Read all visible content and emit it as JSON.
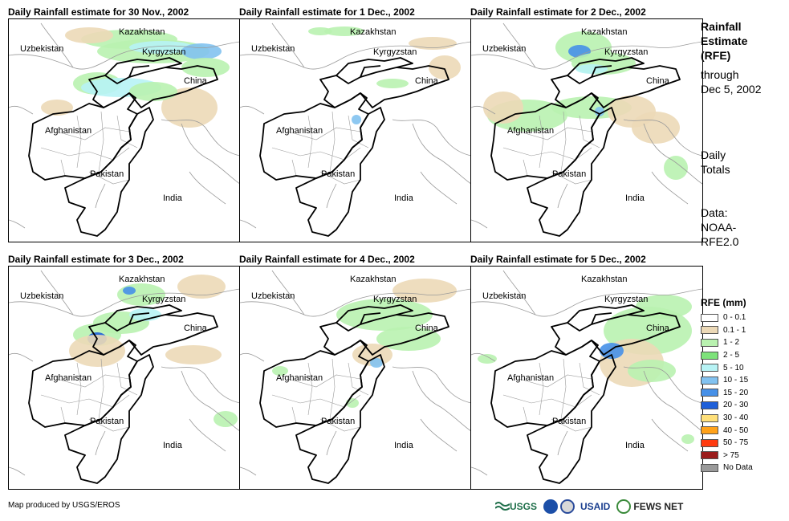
{
  "panels": [
    {
      "title": "Daily Rainfall estimate for 30 Nov., 2002"
    },
    {
      "title": "Daily Rainfall estimate for 1 Dec., 2002"
    },
    {
      "title": "Daily Rainfall estimate for 2 Dec., 2002"
    },
    {
      "title": "Daily Rainfall estimate for 3 Dec., 2002"
    },
    {
      "title": "Daily Rainfall estimate for 4 Dec., 2002"
    },
    {
      "title": "Daily Rainfall estimate for 5 Dec., 2002"
    }
  ],
  "map_labels": {
    "kazakhstan": "Kazakhstan",
    "uzbekistan": "Uzbekistan",
    "kyrgyzstan": "Kyrgyzstan",
    "china": "China",
    "afghanistan": "Afghanistan",
    "pakistan": "Pakistan",
    "india": "India"
  },
  "side_info": {
    "title_lines": [
      "Rainfall",
      "Estimate",
      "(RFE)"
    ],
    "through": "through",
    "date": "Dec 5, 2002",
    "daily_lines": [
      "Daily",
      "Totals"
    ],
    "data_lines": [
      "Data:",
      "NOAA-",
      "RFE2.0"
    ]
  },
  "legend": {
    "title": "RFE (mm)",
    "items": [
      {
        "label": "0 - 0.1",
        "color": "#ffffff"
      },
      {
        "label": "0.1 - 1",
        "color": "#ecd9b7"
      },
      {
        "label": "1 - 2",
        "color": "#b9f2b0"
      },
      {
        "label": "2 - 5",
        "color": "#7de27a"
      },
      {
        "label": "5 - 10",
        "color": "#b7f3f5"
      },
      {
        "label": "10 - 15",
        "color": "#82c2f0"
      },
      {
        "label": "15 - 20",
        "color": "#4690e8"
      },
      {
        "label": "20 - 30",
        "color": "#1e5fd9"
      },
      {
        "label": "30 - 40",
        "color": "#ffe07a"
      },
      {
        "label": "40 - 50",
        "color": "#ffa21a"
      },
      {
        "label": "50 - 75",
        "color": "#ff3b10"
      },
      {
        "label": "> 75",
        "color": "#9b1c1c"
      },
      {
        "label": "No Data",
        "color": "#9a9a9a"
      }
    ]
  },
  "credit": "Map produced by USGS/EROS",
  "logos": {
    "usgs": "USGS",
    "usaid": "USAID",
    "fews": "FEWS NET"
  }
}
